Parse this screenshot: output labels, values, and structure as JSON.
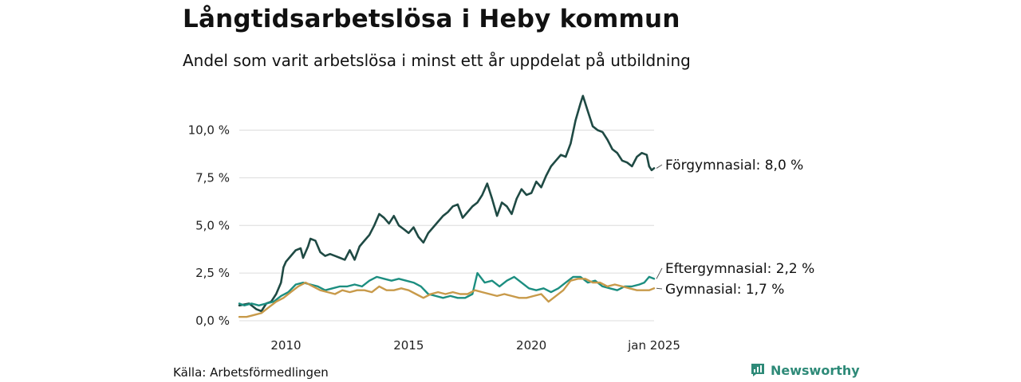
{
  "header": {
    "title": "Långtidsarbetslösa i Heby kommun",
    "subtitle": "Andel som varit arbetslösa i minst ett år uppdelat på utbildning"
  },
  "footer": {
    "source": "Källa: Arbetsförmedlingen",
    "brand": "Newsworthy",
    "brand_icon": "bar-chart-icon"
  },
  "chart_data": {
    "type": "line",
    "title": "Långtidsarbetslösa i Heby kommun",
    "subtitle": "Andel som varit arbetslösa i minst ett år uppdelat på utbildning",
    "xlabel": "",
    "ylabel": "",
    "xlim": [
      2008.1,
      2025.0
    ],
    "ylim": [
      0,
      11.9
    ],
    "y_ticks": [
      0,
      2.5,
      5.0,
      7.5,
      10.0
    ],
    "y_tick_labels": [
      "0,0 %",
      "2,5 %",
      "5,0 %",
      "7,5 %",
      "10,0 %"
    ],
    "x_ticks": [
      2010,
      2015,
      2020,
      2025
    ],
    "x_tick_labels": [
      "2010",
      "2015",
      "2020",
      "jan 2025"
    ],
    "grid": "horizontal",
    "legend": "direct-labels-right",
    "series": [
      {
        "name": "Förgymnasial",
        "label": "Förgymnasial: 8,0 %",
        "color": "#1f4a44",
        "points": [
          [
            2008.1,
            0.8
          ],
          [
            2008.5,
            0.9
          ],
          [
            2008.8,
            0.6
          ],
          [
            2009.0,
            0.5
          ],
          [
            2009.2,
            0.9
          ],
          [
            2009.4,
            1.0
          ],
          [
            2009.6,
            1.4
          ],
          [
            2009.8,
            2.0
          ],
          [
            2009.9,
            2.8
          ],
          [
            2010.0,
            3.1
          ],
          [
            2010.2,
            3.4
          ],
          [
            2010.4,
            3.7
          ],
          [
            2010.6,
            3.8
          ],
          [
            2010.7,
            3.3
          ],
          [
            2010.9,
            3.9
          ],
          [
            2011.0,
            4.3
          ],
          [
            2011.2,
            4.2
          ],
          [
            2011.4,
            3.6
          ],
          [
            2011.6,
            3.4
          ],
          [
            2011.8,
            3.5
          ],
          [
            2012.0,
            3.4
          ],
          [
            2012.2,
            3.3
          ],
          [
            2012.4,
            3.2
          ],
          [
            2012.6,
            3.7
          ],
          [
            2012.8,
            3.2
          ],
          [
            2013.0,
            3.9
          ],
          [
            2013.2,
            4.2
          ],
          [
            2013.4,
            4.5
          ],
          [
            2013.6,
            5.0
          ],
          [
            2013.8,
            5.6
          ],
          [
            2014.0,
            5.4
          ],
          [
            2014.2,
            5.1
          ],
          [
            2014.4,
            5.5
          ],
          [
            2014.6,
            5.0
          ],
          [
            2014.8,
            4.8
          ],
          [
            2015.0,
            4.6
          ],
          [
            2015.2,
            4.9
          ],
          [
            2015.4,
            4.4
          ],
          [
            2015.6,
            4.1
          ],
          [
            2015.8,
            4.6
          ],
          [
            2016.0,
            4.9
          ],
          [
            2016.2,
            5.2
          ],
          [
            2016.4,
            5.5
          ],
          [
            2016.6,
            5.7
          ],
          [
            2016.8,
            6.0
          ],
          [
            2017.0,
            6.1
          ],
          [
            2017.2,
            5.4
          ],
          [
            2017.4,
            5.7
          ],
          [
            2017.6,
            6.0
          ],
          [
            2017.8,
            6.2
          ],
          [
            2018.0,
            6.6
          ],
          [
            2018.2,
            7.2
          ],
          [
            2018.4,
            6.4
          ],
          [
            2018.6,
            5.5
          ],
          [
            2018.8,
            6.2
          ],
          [
            2019.0,
            6.0
          ],
          [
            2019.2,
            5.6
          ],
          [
            2019.4,
            6.4
          ],
          [
            2019.6,
            6.9
          ],
          [
            2019.8,
            6.6
          ],
          [
            2020.0,
            6.7
          ],
          [
            2020.2,
            7.3
          ],
          [
            2020.4,
            7.0
          ],
          [
            2020.6,
            7.6
          ],
          [
            2020.8,
            8.1
          ],
          [
            2021.0,
            8.4
          ],
          [
            2021.2,
            8.7
          ],
          [
            2021.4,
            8.6
          ],
          [
            2021.6,
            9.3
          ],
          [
            2021.8,
            10.5
          ],
          [
            2022.0,
            11.4
          ],
          [
            2022.1,
            11.8
          ],
          [
            2022.3,
            11.0
          ],
          [
            2022.5,
            10.2
          ],
          [
            2022.7,
            10.0
          ],
          [
            2022.9,
            9.9
          ],
          [
            2023.1,
            9.5
          ],
          [
            2023.3,
            9.0
          ],
          [
            2023.5,
            8.8
          ],
          [
            2023.7,
            8.4
          ],
          [
            2023.9,
            8.3
          ],
          [
            2024.1,
            8.1
          ],
          [
            2024.3,
            8.6
          ],
          [
            2024.5,
            8.8
          ],
          [
            2024.7,
            8.7
          ],
          [
            2024.8,
            8.1
          ],
          [
            2024.9,
            7.9
          ],
          [
            2025.0,
            8.0
          ]
        ]
      },
      {
        "name": "Eftergymnasial",
        "label": "Eftergymnasial: 2,2 %",
        "color": "#1c8e80",
        "points": [
          [
            2008.1,
            0.9
          ],
          [
            2008.3,
            0.8
          ],
          [
            2008.6,
            0.9
          ],
          [
            2008.9,
            0.8
          ],
          [
            2009.2,
            0.9
          ],
          [
            2009.5,
            1.0
          ],
          [
            2009.8,
            1.3
          ],
          [
            2010.1,
            1.5
          ],
          [
            2010.4,
            1.9
          ],
          [
            2010.7,
            2.0
          ],
          [
            2011.0,
            1.9
          ],
          [
            2011.3,
            1.8
          ],
          [
            2011.6,
            1.6
          ],
          [
            2011.9,
            1.7
          ],
          [
            2012.2,
            1.8
          ],
          [
            2012.5,
            1.8
          ],
          [
            2012.8,
            1.9
          ],
          [
            2013.1,
            1.8
          ],
          [
            2013.4,
            2.1
          ],
          [
            2013.7,
            2.3
          ],
          [
            2014.0,
            2.2
          ],
          [
            2014.3,
            2.1
          ],
          [
            2014.6,
            2.2
          ],
          [
            2014.9,
            2.1
          ],
          [
            2015.2,
            2.0
          ],
          [
            2015.5,
            1.8
          ],
          [
            2015.8,
            1.4
          ],
          [
            2016.1,
            1.3
          ],
          [
            2016.4,
            1.2
          ],
          [
            2016.7,
            1.3
          ],
          [
            2017.0,
            1.2
          ],
          [
            2017.3,
            1.2
          ],
          [
            2017.6,
            1.4
          ],
          [
            2017.8,
            2.5
          ],
          [
            2018.1,
            2.0
          ],
          [
            2018.4,
            2.1
          ],
          [
            2018.7,
            1.8
          ],
          [
            2019.0,
            2.1
          ],
          [
            2019.3,
            2.3
          ],
          [
            2019.6,
            2.0
          ],
          [
            2019.9,
            1.7
          ],
          [
            2020.2,
            1.6
          ],
          [
            2020.5,
            1.7
          ],
          [
            2020.8,
            1.5
          ],
          [
            2021.1,
            1.7
          ],
          [
            2021.4,
            2.0
          ],
          [
            2021.7,
            2.3
          ],
          [
            2022.0,
            2.3
          ],
          [
            2022.3,
            2.0
          ],
          [
            2022.6,
            2.1
          ],
          [
            2022.9,
            1.8
          ],
          [
            2023.2,
            1.7
          ],
          [
            2023.5,
            1.6
          ],
          [
            2023.8,
            1.8
          ],
          [
            2024.1,
            1.8
          ],
          [
            2024.4,
            1.9
          ],
          [
            2024.6,
            2.0
          ],
          [
            2024.8,
            2.3
          ],
          [
            2025.0,
            2.2
          ]
        ]
      },
      {
        "name": "Gymnasial",
        "label": "Gymnasial: 1,7 %",
        "color": "#c89a4a",
        "points": [
          [
            2008.1,
            0.2
          ],
          [
            2008.4,
            0.2
          ],
          [
            2008.7,
            0.3
          ],
          [
            2009.0,
            0.4
          ],
          [
            2009.3,
            0.7
          ],
          [
            2009.6,
            1.0
          ],
          [
            2009.9,
            1.2
          ],
          [
            2010.2,
            1.5
          ],
          [
            2010.5,
            1.8
          ],
          [
            2010.8,
            2.0
          ],
          [
            2011.1,
            1.8
          ],
          [
            2011.4,
            1.6
          ],
          [
            2011.7,
            1.5
          ],
          [
            2012.0,
            1.4
          ],
          [
            2012.3,
            1.6
          ],
          [
            2012.6,
            1.5
          ],
          [
            2012.9,
            1.6
          ],
          [
            2013.2,
            1.6
          ],
          [
            2013.5,
            1.5
          ],
          [
            2013.8,
            1.8
          ],
          [
            2014.1,
            1.6
          ],
          [
            2014.4,
            1.6
          ],
          [
            2014.7,
            1.7
          ],
          [
            2015.0,
            1.6
          ],
          [
            2015.3,
            1.4
          ],
          [
            2015.6,
            1.2
          ],
          [
            2015.9,
            1.4
          ],
          [
            2016.2,
            1.5
          ],
          [
            2016.5,
            1.4
          ],
          [
            2016.8,
            1.5
          ],
          [
            2017.1,
            1.4
          ],
          [
            2017.4,
            1.4
          ],
          [
            2017.7,
            1.6
          ],
          [
            2018.0,
            1.5
          ],
          [
            2018.3,
            1.4
          ],
          [
            2018.6,
            1.3
          ],
          [
            2018.9,
            1.4
          ],
          [
            2019.2,
            1.3
          ],
          [
            2019.5,
            1.2
          ],
          [
            2019.8,
            1.2
          ],
          [
            2020.1,
            1.3
          ],
          [
            2020.4,
            1.4
          ],
          [
            2020.7,
            1.0
          ],
          [
            2021.0,
            1.3
          ],
          [
            2021.3,
            1.6
          ],
          [
            2021.6,
            2.1
          ],
          [
            2021.9,
            2.2
          ],
          [
            2022.2,
            2.2
          ],
          [
            2022.5,
            2.0
          ],
          [
            2022.8,
            2.0
          ],
          [
            2023.1,
            1.8
          ],
          [
            2023.4,
            1.9
          ],
          [
            2023.7,
            1.8
          ],
          [
            2024.0,
            1.7
          ],
          [
            2024.3,
            1.6
          ],
          [
            2024.6,
            1.6
          ],
          [
            2024.8,
            1.6
          ],
          [
            2025.0,
            1.7
          ]
        ]
      }
    ]
  }
}
